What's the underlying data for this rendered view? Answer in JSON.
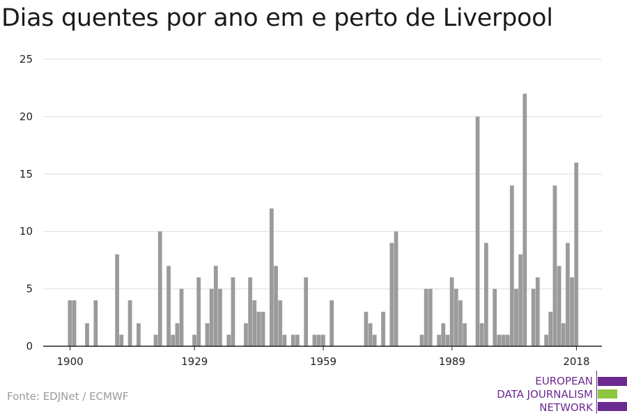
{
  "title": "Dias quentes por ano em e perto de Liverpool",
  "source": "Fonte: EDJNet / ECMWF",
  "logo": {
    "lines": [
      "EUROPEAN",
      "DATA JOURNALISM",
      "NETWORK"
    ],
    "colors": {
      "text": "#6b2a8f",
      "purple": "#6b2a8f",
      "green": "#8cc63f"
    }
  },
  "colors": {
    "bar": "#9b9b9b",
    "grid": "#dcdcdc",
    "axis": "#222222",
    "text": "#222222"
  },
  "chart_data": {
    "type": "bar",
    "title": "Dias quentes por ano em e perto de Liverpool",
    "xlabel": "",
    "ylabel": "",
    "x": [
      1900,
      1901,
      1902,
      1903,
      1904,
      1905,
      1906,
      1907,
      1908,
      1909,
      1910,
      1911,
      1912,
      1913,
      1914,
      1915,
      1916,
      1917,
      1918,
      1919,
      1920,
      1921,
      1922,
      1923,
      1924,
      1925,
      1926,
      1927,
      1928,
      1929,
      1930,
      1931,
      1932,
      1933,
      1934,
      1935,
      1936,
      1937,
      1938,
      1939,
      1940,
      1941,
      1942,
      1943,
      1944,
      1945,
      1946,
      1947,
      1948,
      1949,
      1950,
      1951,
      1952,
      1953,
      1954,
      1955,
      1956,
      1957,
      1958,
      1959,
      1960,
      1961,
      1962,
      1963,
      1964,
      1965,
      1966,
      1967,
      1968,
      1969,
      1970,
      1971,
      1972,
      1973,
      1974,
      1975,
      1976,
      1977,
      1978,
      1979,
      1980,
      1981,
      1982,
      1983,
      1984,
      1985,
      1986,
      1987,
      1988,
      1989,
      1990,
      1991,
      1992,
      1993,
      1994,
      1995,
      1996,
      1997,
      1998,
      1999,
      2000,
      2001,
      2002,
      2003,
      2004,
      2005,
      2006,
      2007,
      2008,
      2009,
      2010,
      2011,
      2012,
      2013,
      2014,
      2015,
      2016,
      2017,
      2018
    ],
    "values": [
      4,
      4,
      0,
      0,
      2,
      0,
      4,
      0,
      0,
      0,
      0,
      8,
      1,
      0,
      4,
      0,
      2,
      0,
      0,
      0,
      1,
      10,
      0,
      7,
      1,
      2,
      5,
      0,
      0,
      1,
      6,
      0,
      2,
      5,
      7,
      5,
      0,
      1,
      6,
      0,
      0,
      2,
      6,
      4,
      3,
      3,
      0,
      12,
      7,
      4,
      1,
      0,
      1,
      1,
      0,
      6,
      0,
      1,
      1,
      1,
      0,
      4,
      0,
      0,
      0,
      0,
      0,
      0,
      0,
      3,
      2,
      1,
      0,
      3,
      0,
      9,
      10,
      0,
      0,
      0,
      0,
      0,
      1,
      5,
      5,
      0,
      1,
      2,
      1,
      6,
      5,
      4,
      2,
      0,
      0,
      20,
      2,
      9,
      0,
      5,
      1,
      1,
      1,
      14,
      5,
      8,
      22,
      0,
      5,
      6,
      0,
      1,
      3,
      14,
      7,
      2,
      9,
      6,
      16
    ],
    "xticks": [
      1900,
      1929,
      1959,
      1989,
      2018
    ],
    "ylim": [
      0,
      25
    ],
    "yticks": [
      0,
      5,
      10,
      15,
      20,
      25
    ],
    "grid": true,
    "legend": "none"
  }
}
